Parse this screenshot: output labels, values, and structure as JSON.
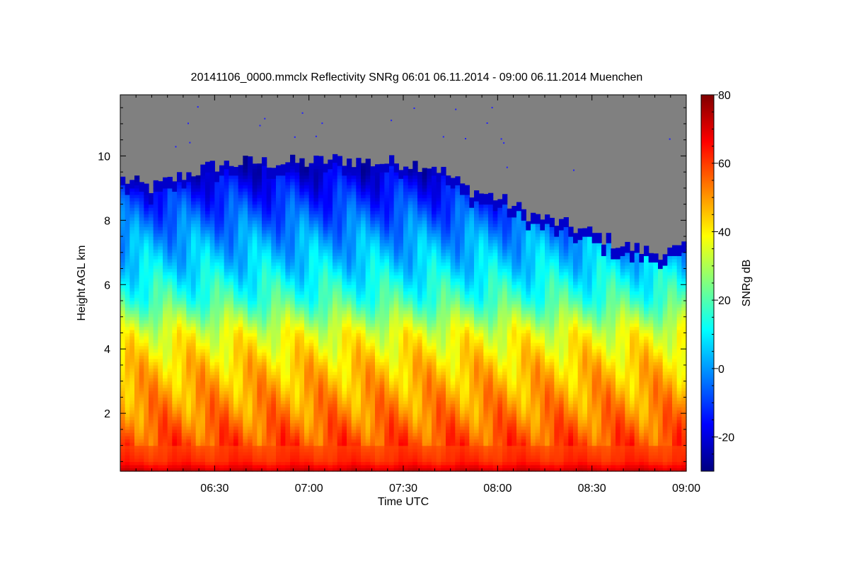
{
  "chart_data": {
    "type": "heatmap",
    "title": "20141106_0000.mmclx Reflectivity SNRg   06:01 06.11.2014 - 09:00 06.11.2014 Muenchen",
    "xlabel": "Time UTC",
    "ylabel": "Height AGL km",
    "colorbar_label": "SNRg dB",
    "x_ticks": [
      "06:30",
      "07:00",
      "07:30",
      "08:00",
      "08:30",
      "09:00"
    ],
    "x_tick_minutes": [
      30,
      60,
      90,
      120,
      150,
      180
    ],
    "xlim_minutes": [
      0,
      180
    ],
    "y_ticks": [
      2,
      4,
      6,
      8,
      10
    ],
    "ylim": [
      0.2,
      11.9
    ],
    "colorbar_ticks": [
      -20,
      0,
      20,
      40,
      60,
      80
    ],
    "colorbar_range": [
      -30,
      80
    ],
    "no_signal_color": "#808080",
    "colormap": [
      "#000080",
      "#0000ff",
      "#0080ff",
      "#00ffff",
      "#80ff80",
      "#ffff00",
      "#ff8000",
      "#ff0000",
      "#800000"
    ],
    "cloud_top_km": [
      {
        "t": 0,
        "h": 9.3
      },
      {
        "t": 10,
        "h": 9.0
      },
      {
        "t": 20,
        "h": 9.4
      },
      {
        "t": 30,
        "h": 9.7
      },
      {
        "t": 40,
        "h": 9.8
      },
      {
        "t": 50,
        "h": 9.8
      },
      {
        "t": 60,
        "h": 9.8
      },
      {
        "t": 70,
        "h": 9.9
      },
      {
        "t": 80,
        "h": 9.8
      },
      {
        "t": 90,
        "h": 9.8
      },
      {
        "t": 100,
        "h": 9.7
      },
      {
        "t": 110,
        "h": 9.0
      },
      {
        "t": 120,
        "h": 8.7
      },
      {
        "t": 130,
        "h": 8.2
      },
      {
        "t": 140,
        "h": 7.9
      },
      {
        "t": 150,
        "h": 7.6
      },
      {
        "t": 160,
        "h": 7.2
      },
      {
        "t": 170,
        "h": 7.0
      },
      {
        "t": 180,
        "h": 7.1
      }
    ],
    "snr_profile_db": [
      {
        "h": 0.2,
        "snr": 72
      },
      {
        "h": 0.5,
        "snr": 62
      },
      {
        "h": 2.0,
        "snr": 52
      },
      {
        "h": 3.5,
        "snr": 44
      },
      {
        "h": 4.5,
        "snr": 36
      },
      {
        "h": 5.5,
        "snr": 18
      },
      {
        "h": 6.5,
        "snr": 8
      },
      {
        "h": 7.5,
        "snr": 0
      },
      {
        "h": 8.5,
        "snr": -10
      },
      {
        "h": 9.5,
        "snr": -20
      }
    ]
  }
}
